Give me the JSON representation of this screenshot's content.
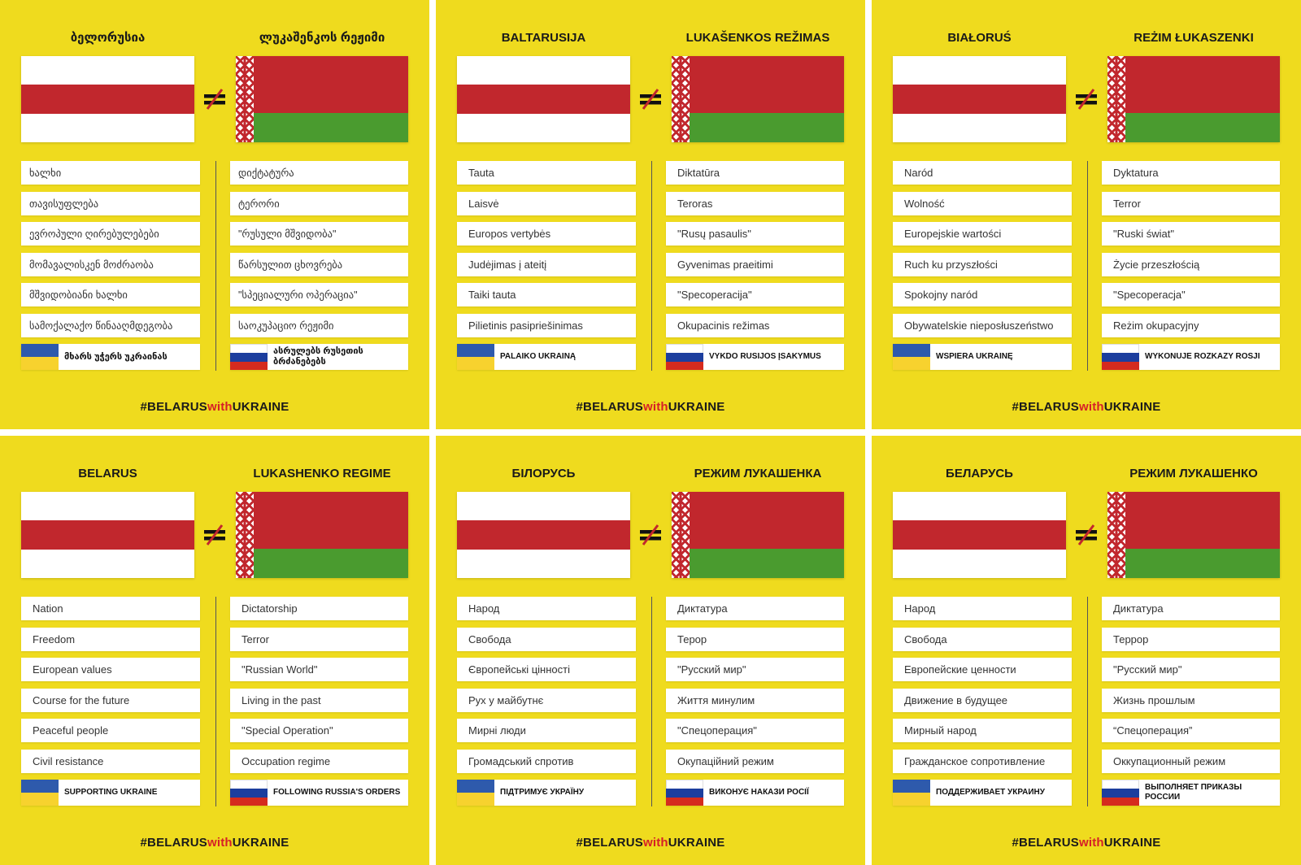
{
  "colors": {
    "panel_background": "#EFDB1E",
    "flag_red": "#C1272D",
    "flag_green": "#4A9B2F",
    "ukraine_blue": "#2E5AAC",
    "ukraine_yellow": "#F7D22E",
    "russia_blue": "#1C3E9E",
    "russia_red": "#D52B1E",
    "hashtag_accent": "#D62027",
    "text": "#1A1A1A"
  },
  "icons": {
    "not_equal": "not-equal-icon",
    "belarus_flag": "white-red-white-flag-icon",
    "regime_flag": "red-green-flag-icon",
    "support_flag": "ukraine-flag-icon",
    "orders_flag": "russia-flag-icon"
  },
  "hashtag": {
    "prefix": "#BELARUS",
    "middle": "with",
    "suffix": "UKRAINE"
  },
  "cards": [
    {
      "left": {
        "title": "ბელორუსია",
        "items": [
          "ხალხი",
          "თავისუფლება",
          "ევროპული ღირებულებები",
          "მომავალისკენ მოძრაობა",
          "მშვიდობიანი ხალხი",
          "სამოქალაქო წინააღმდეგობა"
        ],
        "flag_row": "მხარს უჭერს უკრაინას"
      },
      "right": {
        "title": "ლუკაშენკოს რეჟიმი",
        "items": [
          "დიქტატურა",
          "ტერორი",
          "\"რუსული მშვიდობა\"",
          "წარსულით ცხოვრება",
          "\"სპეციალური ოპერაცია\"",
          "საოკუპაციო რეჟიმი"
        ],
        "flag_row": "ასრულებს რუსეთის ბრძანებებს"
      }
    },
    {
      "left": {
        "title": "BALTARUSIJA",
        "items": [
          "Tauta",
          "Laisvė",
          "Europos vertybės",
          "Judėjimas į ateitį",
          "Taiki tauta",
          "Pilietinis pasipriešinimas"
        ],
        "flag_row": "PALAIKO UKRAINĄ"
      },
      "right": {
        "title": "LUKAŠENKOS REŽIMAS",
        "items": [
          "Diktatūra",
          "Teroras",
          "\"Rusų pasaulis\"",
          "Gyvenimas praeitimi",
          "\"Specoperacija\"",
          "Okupacinis režimas"
        ],
        "flag_row": "VYKDO RUSIJOS ĮSAKYMUS"
      }
    },
    {
      "left": {
        "title": "BIAŁORUŚ",
        "items": [
          "Naród",
          "Wolność",
          "Europejskie wartości",
          "Ruch ku przyszłości",
          "Spokojny naród",
          "Obywatelskie nieposłuszeństwo"
        ],
        "flag_row": "WSPIERA UKRAINĘ"
      },
      "right": {
        "title": "REŻIM ŁUKASZENKI",
        "items": [
          "Dyktatura",
          "Terror",
          "\"Ruski świat\"",
          "Życie przeszłością",
          "\"Specoperacja\"",
          "Reżim okupacyjny"
        ],
        "flag_row": "WYKONUJE ROZKAZY ROSJI"
      }
    },
    {
      "left": {
        "title": "BELARUS",
        "items": [
          "Nation",
          "Freedom",
          "European values",
          "Course for the future",
          "Peaceful people",
          "Civil resistance"
        ],
        "flag_row": "SUPPORTING UKRAINE"
      },
      "right": {
        "title": "LUKASHENKO REGIME",
        "items": [
          "Dictatorship",
          "Terror",
          "\"Russian World\"",
          "Living in the past",
          "\"Special Operation\"",
          "Occupation regime"
        ],
        "flag_row": "FOLLOWING RUSSIA'S ORDERS"
      }
    },
    {
      "left": {
        "title": "БІЛОРУСЬ",
        "items": [
          "Народ",
          "Свобода",
          "Європейські цінності",
          "Рух у майбутнє",
          "Мирні люди",
          "Громадський спротив"
        ],
        "flag_row": "ПІДТРИМУЄ УКРАЇНУ"
      },
      "right": {
        "title": "РЕЖИМ ЛУКАШЕНКА",
        "items": [
          "Диктатура",
          "Терор",
          "\"Русский мир\"",
          "Життя минулим",
          "\"Спецоперация\"",
          "Окупаційний режим"
        ],
        "flag_row": "ВИКОНУЄ НАКАЗИ РОСІЇ"
      }
    },
    {
      "left": {
        "title": "БЕЛАРУСЬ",
        "items": [
          "Народ",
          "Свобода",
          "Европейские ценности",
          "Движение в будущее",
          "Мирный народ",
          "Гражданское сопротивление"
        ],
        "flag_row": "ПОДДЕРЖИВАЕТ УКРАИНУ"
      },
      "right": {
        "title": "РЕЖИМ ЛУКАШЕНКО",
        "items": [
          "Диктатура",
          "Террор",
          "\"Русский мир\"",
          "Жизнь прошлым",
          "“Спецоперация”",
          "Оккупационный режим"
        ],
        "flag_row": "ВЫПОЛНЯЕТ ПРИКАЗЫ РОССИИ"
      }
    }
  ]
}
